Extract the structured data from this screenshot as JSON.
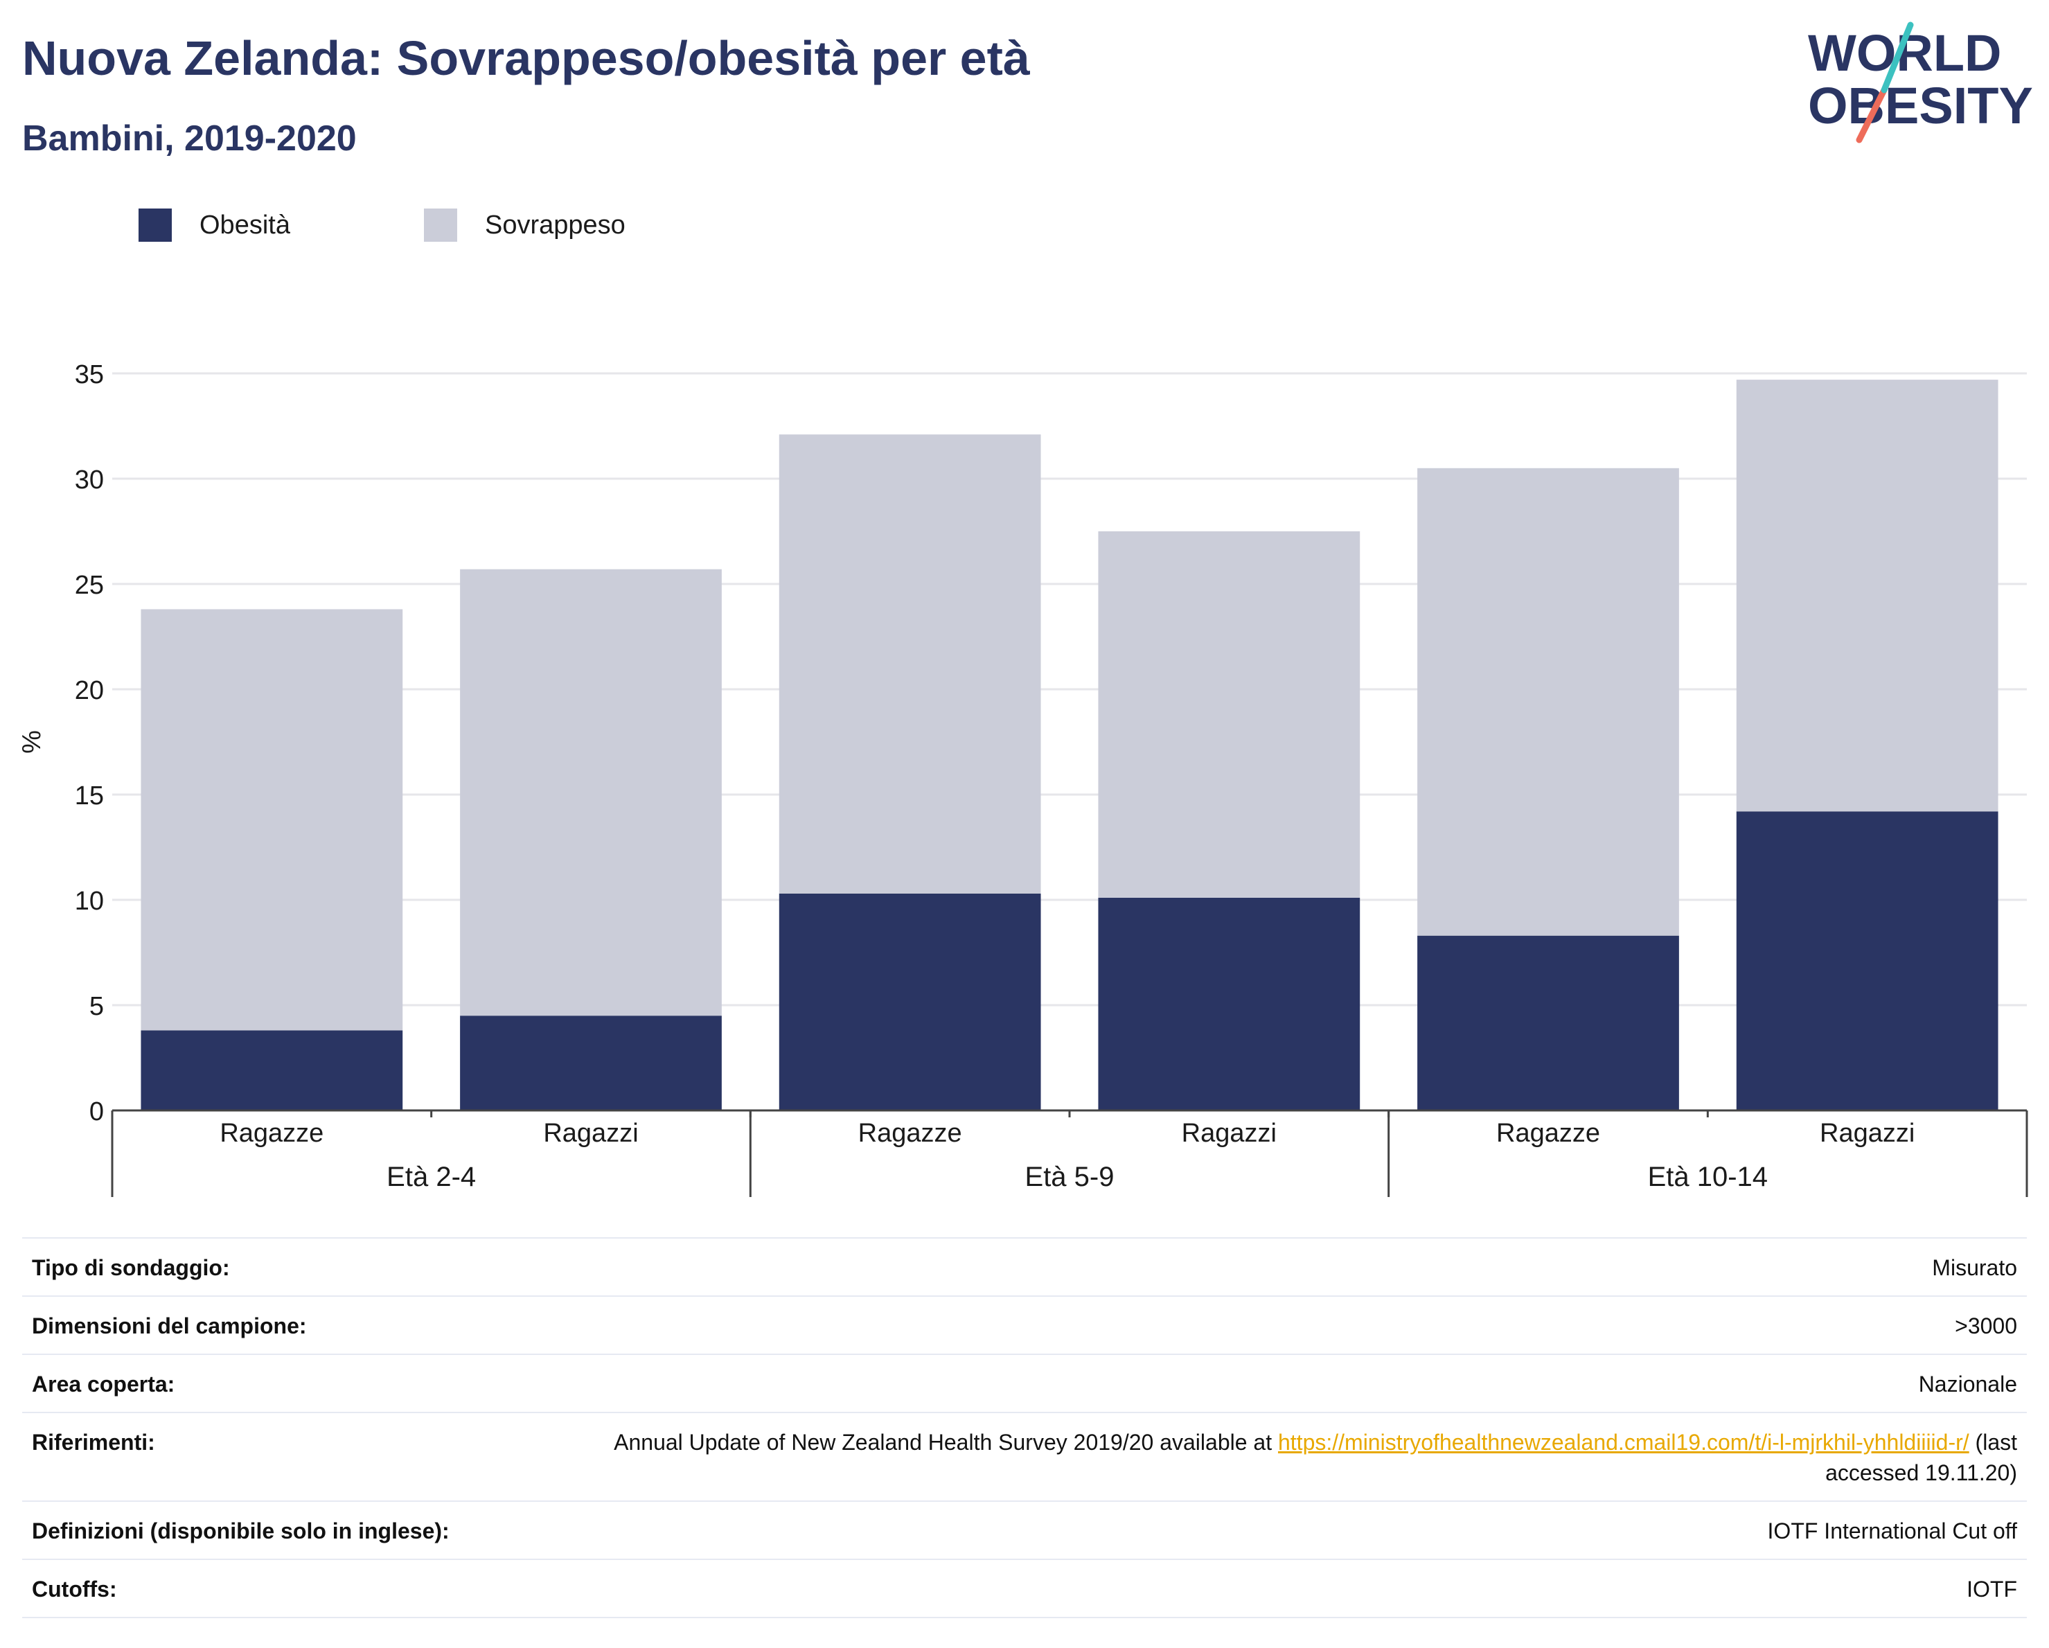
{
  "header": {
    "title": "Nuova Zelanda: Sovrappeso/obesità per età",
    "subtitle": "Bambini, 2019-2020"
  },
  "logo": {
    "line1": "WORLD",
    "line2": "OBESITY"
  },
  "colors": {
    "obesita": "#2a3563",
    "sovrappeso": "#cbcdd9",
    "title": "#2a3563",
    "link": "#e8a800",
    "logo_accent_teal": "#3cc1c0",
    "logo_accent_coral": "#ee6c5a"
  },
  "chart_data": {
    "type": "bar",
    "stacked": true,
    "title": "Nuova Zelanda: Sovrappeso/obesità per età",
    "subtitle": "Bambini, 2019-2020",
    "xlabel": "",
    "ylabel": "%",
    "ylim": [
      0,
      35
    ],
    "yticks": [
      0,
      5,
      10,
      15,
      20,
      25,
      30,
      35
    ],
    "grid": true,
    "legend_position": "top-left",
    "groups": [
      {
        "label": "Età 2-4",
        "categories": [
          "Ragazze",
          "Ragazzi"
        ]
      },
      {
        "label": "Età 5-9",
        "categories": [
          "Ragazze",
          "Ragazzi"
        ]
      },
      {
        "label": "Età 10-14",
        "categories": [
          "Ragazze",
          "Ragazzi"
        ]
      }
    ],
    "categories": [
      "Ragazze",
      "Ragazzi",
      "Ragazze",
      "Ragazzi",
      "Ragazze",
      "Ragazzi"
    ],
    "series": [
      {
        "name": "Obesità",
        "values": [
          3.8,
          4.5,
          10.3,
          10.1,
          8.3,
          14.2
        ]
      },
      {
        "name": "Sovrappeso",
        "values": [
          20.0,
          21.2,
          21.8,
          17.4,
          22.2,
          20.5
        ]
      }
    ]
  },
  "meta": {
    "rows": [
      {
        "label": "Tipo di sondaggio:",
        "value": "Misurato"
      },
      {
        "label": "Dimensioni del campione:",
        "value": ">3000"
      },
      {
        "label": "Area coperta:",
        "value": "Nazionale"
      },
      {
        "label": "Riferimenti:",
        "value_prefix": "Annual Update of New Zealand Health Survey 2019/20 available at ",
        "link": "https://ministryofhealthnewzealand.cmail19.com/t/i-l-mjrkhil-yhhldiiiid-r/",
        "value_suffix": " (last accessed 19.11.20)"
      },
      {
        "label": "Definizioni (disponibile solo in inglese):",
        "value": "IOTF International Cut off"
      },
      {
        "label": "Cutoffs:",
        "value": "IOTF"
      }
    ]
  }
}
